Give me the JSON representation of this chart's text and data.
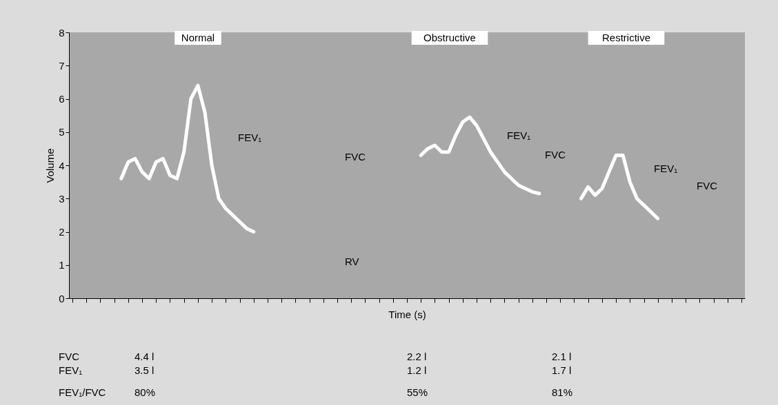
{
  "chart_data": {
    "type": "line",
    "xlabel": "Time (s)",
    "ylabel": "Volume",
    "categories": [
      null,
      null,
      null,
      null,
      null,
      null,
      null,
      null,
      null,
      null,
      null,
      null,
      null,
      null,
      null,
      null,
      null,
      null,
      null,
      null,
      null,
      null,
      null,
      null,
      null,
      null,
      null,
      null,
      null,
      null,
      null,
      null,
      null,
      null,
      null,
      null,
      null,
      null,
      null,
      null,
      null,
      null,
      null,
      null,
      null,
      null,
      null,
      null,
      null,
      null,
      null,
      null,
      null,
      null,
      null,
      null,
      null,
      null,
      null,
      null,
      null,
      null,
      null,
      null,
      null,
      null,
      null,
      null,
      null,
      null,
      null,
      null,
      null,
      null,
      null,
      null,
      null,
      null,
      null,
      null,
      null,
      null,
      null,
      null,
      null,
      null,
      null,
      null,
      null,
      null,
      null,
      null,
      null,
      null,
      null,
      null,
      null
    ],
    "series": [
      {
        "name": "Normal",
        "color": "#ffffff",
        "values": [
          null,
          null,
          null,
          null,
          null,
          null,
          null,
          3.6,
          4.1,
          4.2,
          3.8,
          3.6,
          4.1,
          4.2,
          3.7,
          3.6,
          4.4,
          6.0,
          6.4,
          5.6,
          4.0,
          3.0,
          2.7,
          2.5,
          2.3,
          2.1,
          2.0,
          null,
          null,
          null,
          null,
          null,
          null,
          null,
          null,
          null,
          null,
          null,
          null,
          null,
          null,
          null,
          null,
          null,
          null,
          null,
          null,
          null,
          null,
          null,
          null,
          null,
          null,
          null,
          null,
          null,
          null,
          null,
          null,
          null,
          null,
          null,
          null,
          null,
          null,
          null,
          null,
          null,
          null,
          null,
          null,
          null,
          null,
          null,
          null,
          null,
          null,
          null,
          null,
          null,
          null,
          null,
          null,
          null,
          null,
          null,
          null,
          null,
          null,
          null,
          null,
          null,
          null,
          null,
          null,
          null,
          null
        ]
      },
      {
        "name": "Obstructive",
        "color": "#ffffff",
        "values": [
          null,
          null,
          null,
          null,
          null,
          null,
          null,
          null,
          null,
          null,
          null,
          null,
          null,
          null,
          null,
          null,
          null,
          null,
          null,
          null,
          null,
          null,
          null,
          null,
          null,
          null,
          null,
          null,
          null,
          null,
          null,
          null,
          null,
          null,
          null,
          null,
          null,
          null,
          null,
          null,
          null,
          null,
          null,
          null,
          null,
          null,
          null,
          null,
          null,
          null,
          4.3,
          4.5,
          4.6,
          4.4,
          4.4,
          4.9,
          5.3,
          5.45,
          5.2,
          4.8,
          4.4,
          4.1,
          3.8,
          3.6,
          3.4,
          3.3,
          3.2,
          3.15,
          null,
          null,
          null,
          null,
          null,
          null,
          null,
          null,
          null,
          null,
          null,
          null,
          null,
          null,
          null,
          null,
          null,
          null,
          null,
          null,
          null,
          null,
          null,
          null,
          null,
          null,
          null,
          null,
          null
        ]
      },
      {
        "name": "Restrictive",
        "color": "#ffffff",
        "values": [
          null,
          null,
          null,
          null,
          null,
          null,
          null,
          null,
          null,
          null,
          null,
          null,
          null,
          null,
          null,
          null,
          null,
          null,
          null,
          null,
          null,
          null,
          null,
          null,
          null,
          null,
          null,
          null,
          null,
          null,
          null,
          null,
          null,
          null,
          null,
          null,
          null,
          null,
          null,
          null,
          null,
          null,
          null,
          null,
          null,
          null,
          null,
          null,
          null,
          null,
          null,
          null,
          null,
          null,
          null,
          null,
          null,
          null,
          null,
          null,
          null,
          null,
          null,
          null,
          null,
          null,
          null,
          null,
          null,
          null,
          null,
          null,
          null,
          3.0,
          3.35,
          3.1,
          3.3,
          3.8,
          4.3,
          4.3,
          3.5,
          3.0,
          2.8,
          2.6,
          2.4,
          null,
          null,
          null,
          null,
          null,
          null,
          null,
          null,
          null,
          null,
          null,
          null
        ]
      }
    ],
    "ylim": [
      0,
      8
    ],
    "yticks": [
      0,
      1,
      2,
      3,
      4,
      5,
      6,
      7,
      8
    ],
    "grid": false,
    "tick_labels": "y",
    "line_style": "solid",
    "marker": "none",
    "annotations": [
      "FEV₁",
      "FVC",
      "RV",
      "FEV₁",
      "FVC",
      "FEV₁",
      "FVC",
      "FVC",
      "FEV₁",
      "FEV₁/FVC",
      "4.4 l",
      "3.5 l",
      "80%",
      "2.2 l",
      "1.2 l",
      "55%",
      "2.1 l",
      "1.7 l",
      "81%"
    ]
  }
}
